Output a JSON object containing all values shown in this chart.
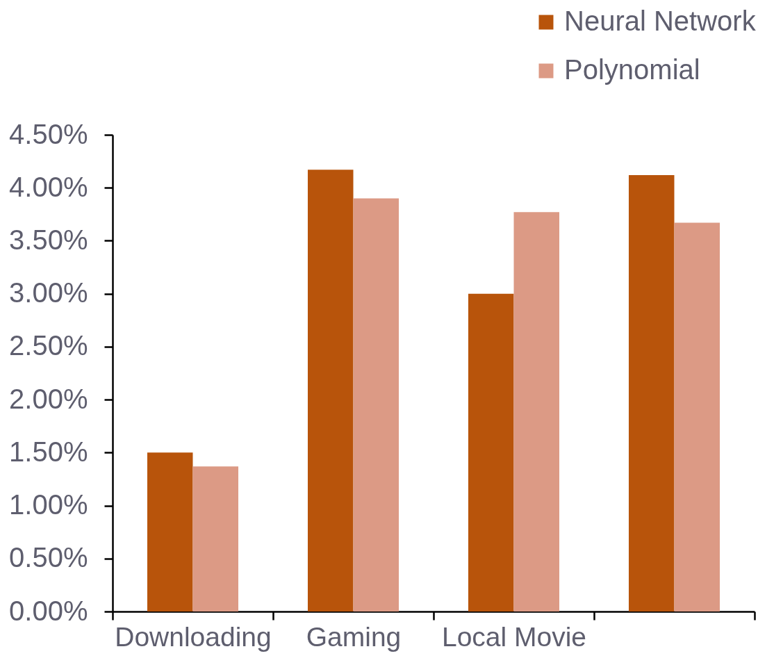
{
  "chart_data": {
    "type": "bar",
    "categories": [
      "Downloading",
      "Gaming",
      "Local Movie",
      null
    ],
    "series": [
      {
        "name": "Neural Network",
        "color": "#b8540b",
        "values": [
          1.5,
          4.17,
          3.0,
          4.12
        ]
      },
      {
        "name": "Polynomial",
        "color": "#dc9a85",
        "values": [
          1.37,
          3.9,
          3.77,
          3.67
        ]
      }
    ],
    "ylim": [
      0,
      4.5
    ],
    "yticks": [
      {
        "value": 0,
        "label": "0.00%"
      },
      {
        "value": 0.5,
        "label": "0.50%"
      },
      {
        "value": 1,
        "label": "1.00%"
      },
      {
        "value": 1.5,
        "label": "1.50%"
      },
      {
        "value": 2,
        "label": "2.00%"
      },
      {
        "value": 2.5,
        "label": "2.50%"
      },
      {
        "value": 3,
        "label": "3.00%"
      },
      {
        "value": 3.5,
        "label": "3.50%"
      },
      {
        "value": 4,
        "label": "4.00%"
      },
      {
        "value": 4.5,
        "label": "4.50%"
      }
    ],
    "grid": false,
    "legend": "top right"
  }
}
